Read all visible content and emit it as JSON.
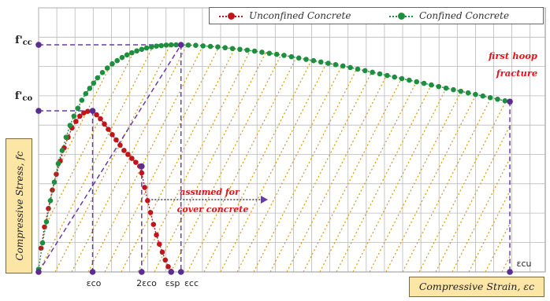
{
  "chart_data": {
    "type": "line",
    "xlabel": "Compressive Strain, εc",
    "ylabel": "Compressive Stress, fc",
    "xlim": [
      0,
      10
    ],
    "ylim": [
      0,
      10
    ],
    "grid": true,
    "legend_position": "top-right",
    "x_ticks": [
      {
        "x": 1.1,
        "label": "εco"
      },
      {
        "x": 2.1,
        "label": "2εco"
      },
      {
        "x": 2.7,
        "label": "εsp"
      },
      {
        "x": 2.9,
        "label": "εcc"
      },
      {
        "x": 9.6,
        "label": "εcu"
      }
    ],
    "y_ticks": [
      {
        "y": 8.6,
        "label": "f'cc"
      },
      {
        "y": 6.1,
        "label": "f'co"
      }
    ],
    "series": [
      {
        "name": "Unconfined Concrete",
        "color": "#c0161b",
        "x": [
          0.05,
          0.12,
          0.2,
          0.28,
          0.36,
          0.44,
          0.52,
          0.6,
          0.68,
          0.76,
          0.84,
          0.92,
          1.0,
          1.1,
          1.18,
          1.26,
          1.34,
          1.42,
          1.5,
          1.58,
          1.66,
          1.74,
          1.82,
          1.9,
          1.98,
          2.06,
          2.1,
          2.16,
          2.22,
          2.28,
          2.34,
          2.4,
          2.46,
          2.52,
          2.58,
          2.64,
          2.7
        ],
        "y": [
          0.9,
          1.7,
          2.4,
          3.1,
          3.7,
          4.2,
          4.7,
          5.1,
          5.45,
          5.7,
          5.9,
          6.02,
          6.08,
          6.1,
          5.95,
          5.8,
          5.6,
          5.4,
          5.2,
          5.0,
          4.8,
          4.6,
          4.45,
          4.3,
          4.15,
          4.0,
          3.75,
          3.2,
          2.7,
          2.25,
          1.8,
          1.4,
          1.05,
          0.75,
          0.45,
          0.2,
          0.02
        ]
      },
      {
        "name": "Confined Concrete",
        "color": "#1e8f3e",
        "x": [
          0,
          0.08,
          0.16,
          0.24,
          0.32,
          0.4,
          0.48,
          0.56,
          0.64,
          0.72,
          0.8,
          0.88,
          0.96,
          1.04,
          1.12,
          1.2,
          1.3,
          1.4,
          1.5,
          1.6,
          1.7,
          1.8,
          1.9,
          2.0,
          2.1,
          2.2,
          2.3,
          2.4,
          2.5,
          2.6,
          2.7,
          2.8,
          2.9,
          3.05,
          3.2,
          3.35,
          3.5,
          3.65,
          3.8,
          3.95,
          4.1,
          4.25,
          4.4,
          4.55,
          4.7,
          4.85,
          5.0,
          5.15,
          5.3,
          5.45,
          5.6,
          5.75,
          5.9,
          6.05,
          6.2,
          6.35,
          6.5,
          6.65,
          6.8,
          6.95,
          7.1,
          7.25,
          7.4,
          7.55,
          7.7,
          7.85,
          8.0,
          8.15,
          8.3,
          8.45,
          8.6,
          8.75,
          8.9,
          9.05,
          9.2,
          9.35,
          9.5,
          9.6
        ],
        "y": [
          0.1,
          1.1,
          1.9,
          2.7,
          3.4,
          4.1,
          4.6,
          5.1,
          5.55,
          5.9,
          6.2,
          6.5,
          6.75,
          6.95,
          7.15,
          7.35,
          7.55,
          7.72,
          7.88,
          8.0,
          8.12,
          8.22,
          8.3,
          8.37,
          8.43,
          8.48,
          8.52,
          8.55,
          8.57,
          8.59,
          8.6,
          8.6,
          8.6,
          8.59,
          8.58,
          8.56,
          8.54,
          8.52,
          8.49,
          8.46,
          8.43,
          8.4,
          8.36,
          8.32,
          8.28,
          8.24,
          8.2,
          8.15,
          8.1,
          8.05,
          8.0,
          7.95,
          7.9,
          7.85,
          7.8,
          7.74,
          7.68,
          7.62,
          7.56,
          7.5,
          7.44,
          7.38,
          7.32,
          7.26,
          7.2,
          7.14,
          7.08,
          7.02,
          6.96,
          6.9,
          6.84,
          6.78,
          6.72,
          6.66,
          6.6,
          6.54,
          6.48,
          6.45
        ]
      }
    ],
    "annotations": [
      {
        "text": "first hoop",
        "color": "#e8101a"
      },
      {
        "text": "fracture",
        "color": "#e8101a"
      },
      {
        "text": "assumed for",
        "color": "#e8101a"
      },
      {
        "text": "cover concrete",
        "color": "#e8101a"
      }
    ]
  }
}
